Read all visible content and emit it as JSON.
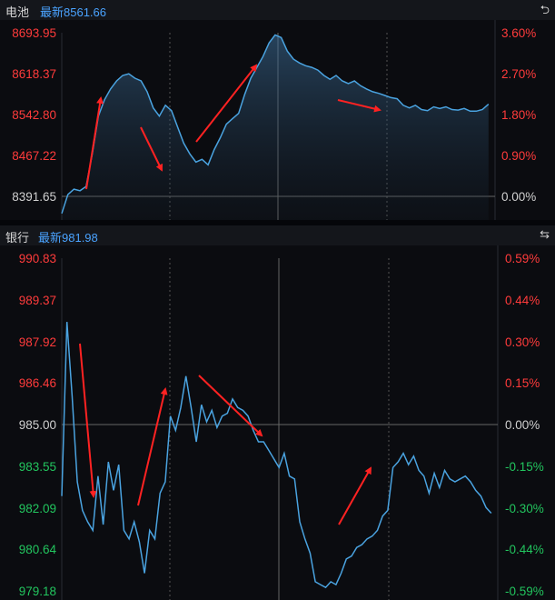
{
  "panels": [
    {
      "name": "电池",
      "latest": "最新8561.66",
      "ctl": "⮌",
      "left_ticks": [
        "8693.95",
        "8618.37",
        "8542.80",
        "8467.22",
        "8391.65"
      ],
      "right_ticks": [
        "3.60%",
        "2.70%",
        "1.80%",
        "0.90%",
        "0.00%"
      ],
      "tick_colors": [
        "red",
        "red",
        "red",
        "red",
        "gray"
      ]
    },
    {
      "name": "银行",
      "latest": "最新981.98",
      "ctl": "⇆",
      "left_ticks": [
        "990.83",
        "989.37",
        "987.92",
        "986.46",
        "985.00",
        "983.55",
        "982.09",
        "980.64",
        "979.18"
      ],
      "right_ticks": [
        "0.59%",
        "0.44%",
        "0.30%",
        "0.15%",
        "0.00%",
        "-0.15%",
        "-0.30%",
        "-0.44%",
        "-0.59%"
      ],
      "tick_colors": [
        "red",
        "red",
        "red",
        "red",
        "gray",
        "green",
        "green",
        "green",
        "green"
      ]
    }
  ],
  "colors": {
    "red": "#ff3b3b",
    "green": "#22c55e",
    "gray": "#d0d0d0",
    "line": "#4aa3e0",
    "arrow": "#ff2222"
  },
  "chart_data": [
    {
      "type": "area",
      "title": "电池",
      "ylim": [
        8391.65,
        8693.95
      ],
      "baseline": 8391.65,
      "x_count": 241,
      "series": [
        {
          "values": [
            8360,
            8395,
            8405,
            8402,
            8410,
            8470,
            8540,
            8570,
            8590,
            8605,
            8615,
            8618,
            8610,
            8605,
            8585,
            8555,
            8540,
            8560,
            8550,
            8520,
            8490,
            8470,
            8455,
            8460,
            8450,
            8478,
            8500,
            8525,
            8535,
            8545,
            8580,
            8610,
            8630,
            8650,
            8675,
            8690,
            8685,
            8660,
            8645,
            8638,
            8633,
            8630,
            8625,
            8615,
            8608,
            8615,
            8605,
            8600,
            8605,
            8596,
            8590,
            8585,
            8582,
            8578,
            8574,
            8572,
            8560,
            8555,
            8560,
            8552,
            8550,
            8557,
            8554,
            8557,
            8552,
            8551,
            8554,
            8549,
            8549,
            8552,
            8562
          ]
        }
      ]
    },
    {
      "type": "line",
      "title": "银行",
      "ylim": [
        979.18,
        990.83
      ],
      "baseline": 985.0,
      "x_count": 241,
      "series": [
        {
          "values": [
            982.5,
            988.6,
            986.0,
            983.0,
            982.0,
            981.6,
            981.3,
            983.2,
            981.5,
            983.7,
            982.7,
            983.6,
            981.3,
            981.0,
            981.6,
            980.9,
            979.8,
            981.3,
            981.0,
            982.6,
            983.0,
            985.3,
            984.8,
            985.6,
            986.7,
            985.6,
            984.4,
            985.7,
            985.1,
            985.5,
            984.9,
            985.3,
            985.4,
            985.9,
            985.6,
            985.5,
            985.3,
            984.8,
            984.4,
            984.4,
            984.1,
            983.8,
            983.5,
            984.0,
            983.2,
            983.1,
            981.6,
            981.0,
            980.5,
            979.5,
            979.4,
            979.3,
            979.5,
            979.4,
            979.8,
            980.3,
            980.4,
            980.7,
            980.8,
            981.0,
            981.1,
            981.3,
            981.8,
            982.0,
            983.5,
            983.7,
            984.0,
            983.6,
            983.9,
            983.4,
            983.2,
            982.6,
            983.3,
            982.8,
            983.4,
            983.1,
            983.0,
            983.1,
            983.2,
            983.0,
            982.7,
            982.5,
            982.1,
            981.9
          ]
        }
      ]
    }
  ]
}
